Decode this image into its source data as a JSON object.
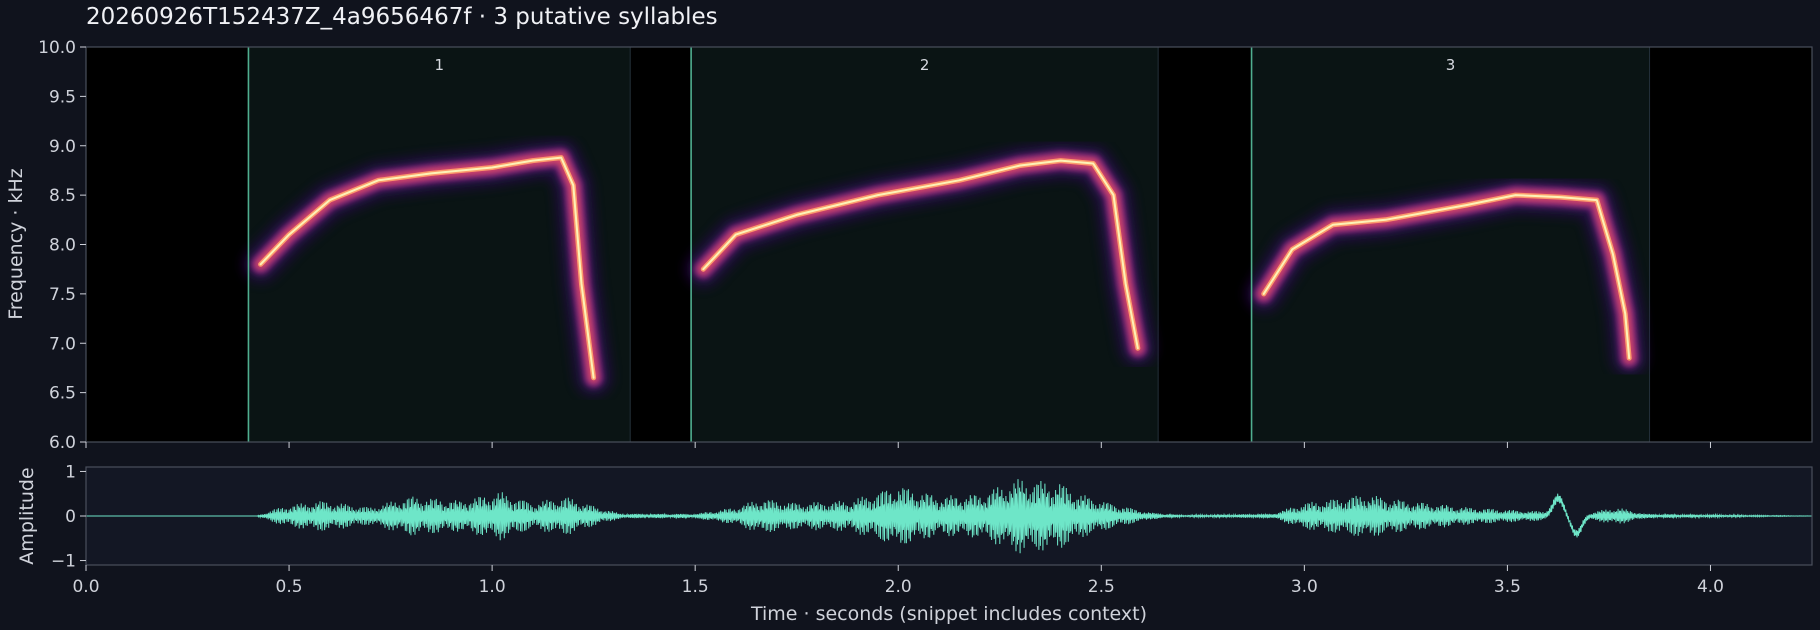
{
  "title": "20260926T152437Z_4a9656467f  ·  3 putative syllables",
  "colors": {
    "background": "#10131d",
    "spectrogram_background": "#000000",
    "segment_fill": "#0a1414",
    "boundary_line": "#4fae8f",
    "waveform": "#6ee6c8",
    "axis": "#4a4f5c",
    "text": "#cfd2da"
  },
  "chart_data": [
    {
      "type": "heatmap",
      "name": "spectrogram",
      "ylabel": "Frequency · kHz",
      "xlim": [
        0.0,
        4.25
      ],
      "ylim": [
        6.0,
        10.0
      ],
      "yticks": [
        "6.0",
        "6.5",
        "7.0",
        "7.5",
        "8.0",
        "8.5",
        "9.0",
        "9.5",
        "10.0"
      ],
      "colormap": "magma",
      "segments": [
        {
          "label": "1",
          "start": 0.4,
          "end": 1.34
        },
        {
          "label": "2",
          "start": 1.49,
          "end": 2.64
        },
        {
          "label": "3",
          "start": 2.87,
          "end": 3.85
        }
      ],
      "syllables": [
        {
          "contour": [
            [
              0.43,
              7.8
            ],
            [
              0.5,
              8.1
            ],
            [
              0.6,
              8.45
            ],
            [
              0.72,
              8.65
            ],
            [
              0.85,
              8.72
            ],
            [
              1.0,
              8.78
            ],
            [
              1.1,
              8.85
            ],
            [
              1.17,
              8.88
            ],
            [
              1.2,
              8.6
            ],
            [
              1.22,
              7.6
            ],
            [
              1.25,
              6.65
            ]
          ]
        },
        {
          "contour": [
            [
              1.52,
              7.75
            ],
            [
              1.6,
              8.1
            ],
            [
              1.75,
              8.3
            ],
            [
              1.95,
              8.5
            ],
            [
              2.15,
              8.65
            ],
            [
              2.3,
              8.8
            ],
            [
              2.4,
              8.85
            ],
            [
              2.48,
              8.82
            ],
            [
              2.53,
              8.5
            ],
            [
              2.56,
              7.6
            ],
            [
              2.59,
              6.95
            ]
          ]
        },
        {
          "contour": [
            [
              2.9,
              7.5
            ],
            [
              2.97,
              7.95
            ],
            [
              3.07,
              8.2
            ],
            [
              3.2,
              8.25
            ],
            [
              3.4,
              8.4
            ],
            [
              3.52,
              8.5
            ],
            [
              3.63,
              8.48
            ],
            [
              3.72,
              8.45
            ],
            [
              3.76,
              7.9
            ],
            [
              3.79,
              7.3
            ],
            [
              3.8,
              6.85
            ]
          ]
        }
      ]
    },
    {
      "type": "line",
      "name": "waveform",
      "xlabel": "Time · seconds (snippet includes context)",
      "ylabel": "Amplitude",
      "xlim": [
        0.0,
        4.25
      ],
      "ylim": [
        -1.1,
        1.1
      ],
      "xticks": [
        "0.0",
        "0.5",
        "1.0",
        "1.5",
        "2.0",
        "2.5",
        "3.0",
        "3.5",
        "4.0"
      ],
      "yticks": [
        "−1",
        "0",
        "1"
      ],
      "envelope": [
        [
          0.0,
          0.0
        ],
        [
          0.42,
          0.0
        ],
        [
          0.46,
          0.15
        ],
        [
          0.5,
          0.25
        ],
        [
          0.58,
          0.35
        ],
        [
          0.7,
          0.2
        ],
        [
          0.8,
          0.45
        ],
        [
          0.92,
          0.35
        ],
        [
          1.02,
          0.55
        ],
        [
          1.1,
          0.3
        ],
        [
          1.18,
          0.45
        ],
        [
          1.26,
          0.2
        ],
        [
          1.32,
          0.05
        ],
        [
          1.5,
          0.05
        ],
        [
          1.6,
          0.2
        ],
        [
          1.66,
          0.4
        ],
        [
          1.75,
          0.3
        ],
        [
          1.88,
          0.35
        ],
        [
          2.0,
          0.7
        ],
        [
          2.1,
          0.45
        ],
        [
          2.2,
          0.5
        ],
        [
          2.3,
          0.85
        ],
        [
          2.4,
          0.75
        ],
        [
          2.45,
          0.5
        ],
        [
          2.52,
          0.3
        ],
        [
          2.62,
          0.08
        ],
        [
          2.7,
          0.02
        ],
        [
          2.92,
          0.05
        ],
        [
          3.0,
          0.3
        ],
        [
          3.08,
          0.4
        ],
        [
          3.15,
          0.5
        ],
        [
          3.25,
          0.35
        ],
        [
          3.4,
          0.2
        ],
        [
          3.55,
          0.12
        ],
        [
          3.64,
          0.1
        ],
        [
          3.7,
          0.08
        ],
        [
          3.77,
          0.2
        ],
        [
          3.84,
          0.05
        ],
        [
          4.25,
          0.0
        ]
      ],
      "transient": {
        "t": 3.625,
        "peak": 0.4,
        "trough": -0.4
      }
    }
  ]
}
